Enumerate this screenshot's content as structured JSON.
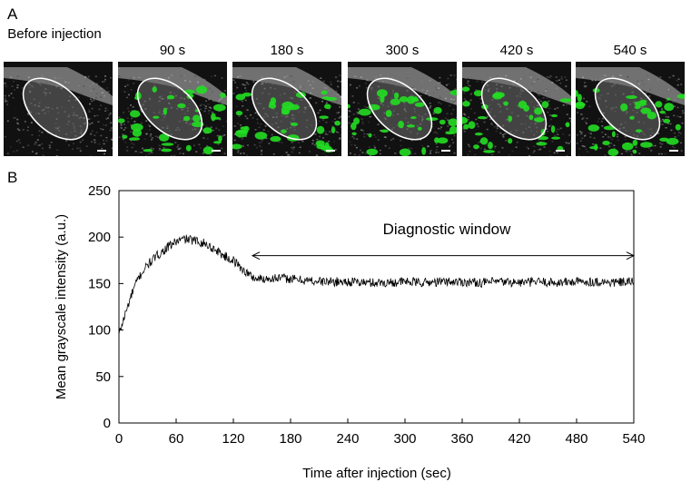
{
  "panels": {
    "a_label": "A",
    "b_label": "B"
  },
  "frames": [
    {
      "label": "Before injection",
      "contrast": 0
    },
    {
      "label": "90 s",
      "contrast": 1
    },
    {
      "label": "180 s",
      "contrast": 1
    },
    {
      "label": "300 s",
      "contrast": 1
    },
    {
      "label": "420 s",
      "contrast": 1
    },
    {
      "label": "540 s",
      "contrast": 1
    }
  ],
  "colors": {
    "contrast_green": "#22dd22",
    "roi_outline": "#ffffff",
    "trace": "#000000"
  },
  "chart_data": {
    "type": "line",
    "title": "",
    "xlabel": "Time after injection (sec)",
    "ylabel": "Mean grayscale intensity (a.u.)",
    "xlim": [
      0,
      540
    ],
    "ylim": [
      0,
      250
    ],
    "xticks": [
      0,
      60,
      120,
      180,
      240,
      300,
      360,
      420,
      480,
      540
    ],
    "yticks": [
      0,
      50,
      100,
      150,
      200,
      250
    ],
    "grid": false,
    "legend": "none",
    "annotation": {
      "text": "Diagnostic window",
      "x_start": 140,
      "x_end": 540,
      "y": 180
    },
    "series": [
      {
        "x": [
          0,
          5,
          10,
          15,
          20,
          25,
          30,
          35,
          40,
          45,
          50,
          55,
          60,
          65,
          70,
          75,
          80,
          85,
          90,
          95,
          100,
          105,
          110,
          115,
          120,
          125,
          130,
          135,
          140,
          145,
          150,
          160,
          170,
          180,
          190,
          200,
          220,
          240,
          260,
          280,
          300,
          320,
          340,
          360,
          380,
          400,
          420,
          440,
          460,
          480,
          500,
          520,
          540
        ],
        "values": [
          95,
          112,
          128,
          143,
          155,
          163,
          170,
          175,
          180,
          184,
          188,
          192,
          195,
          197,
          198,
          197,
          196,
          195,
          193,
          190,
          187,
          184,
          180,
          177,
          175,
          170,
          165,
          161,
          157,
          155,
          155,
          156,
          156,
          155,
          154,
          153,
          152,
          152,
          151,
          151,
          152,
          151,
          152,
          152,
          151,
          152,
          151,
          152,
          151,
          152,
          152,
          151,
          152
        ]
      }
    ]
  }
}
